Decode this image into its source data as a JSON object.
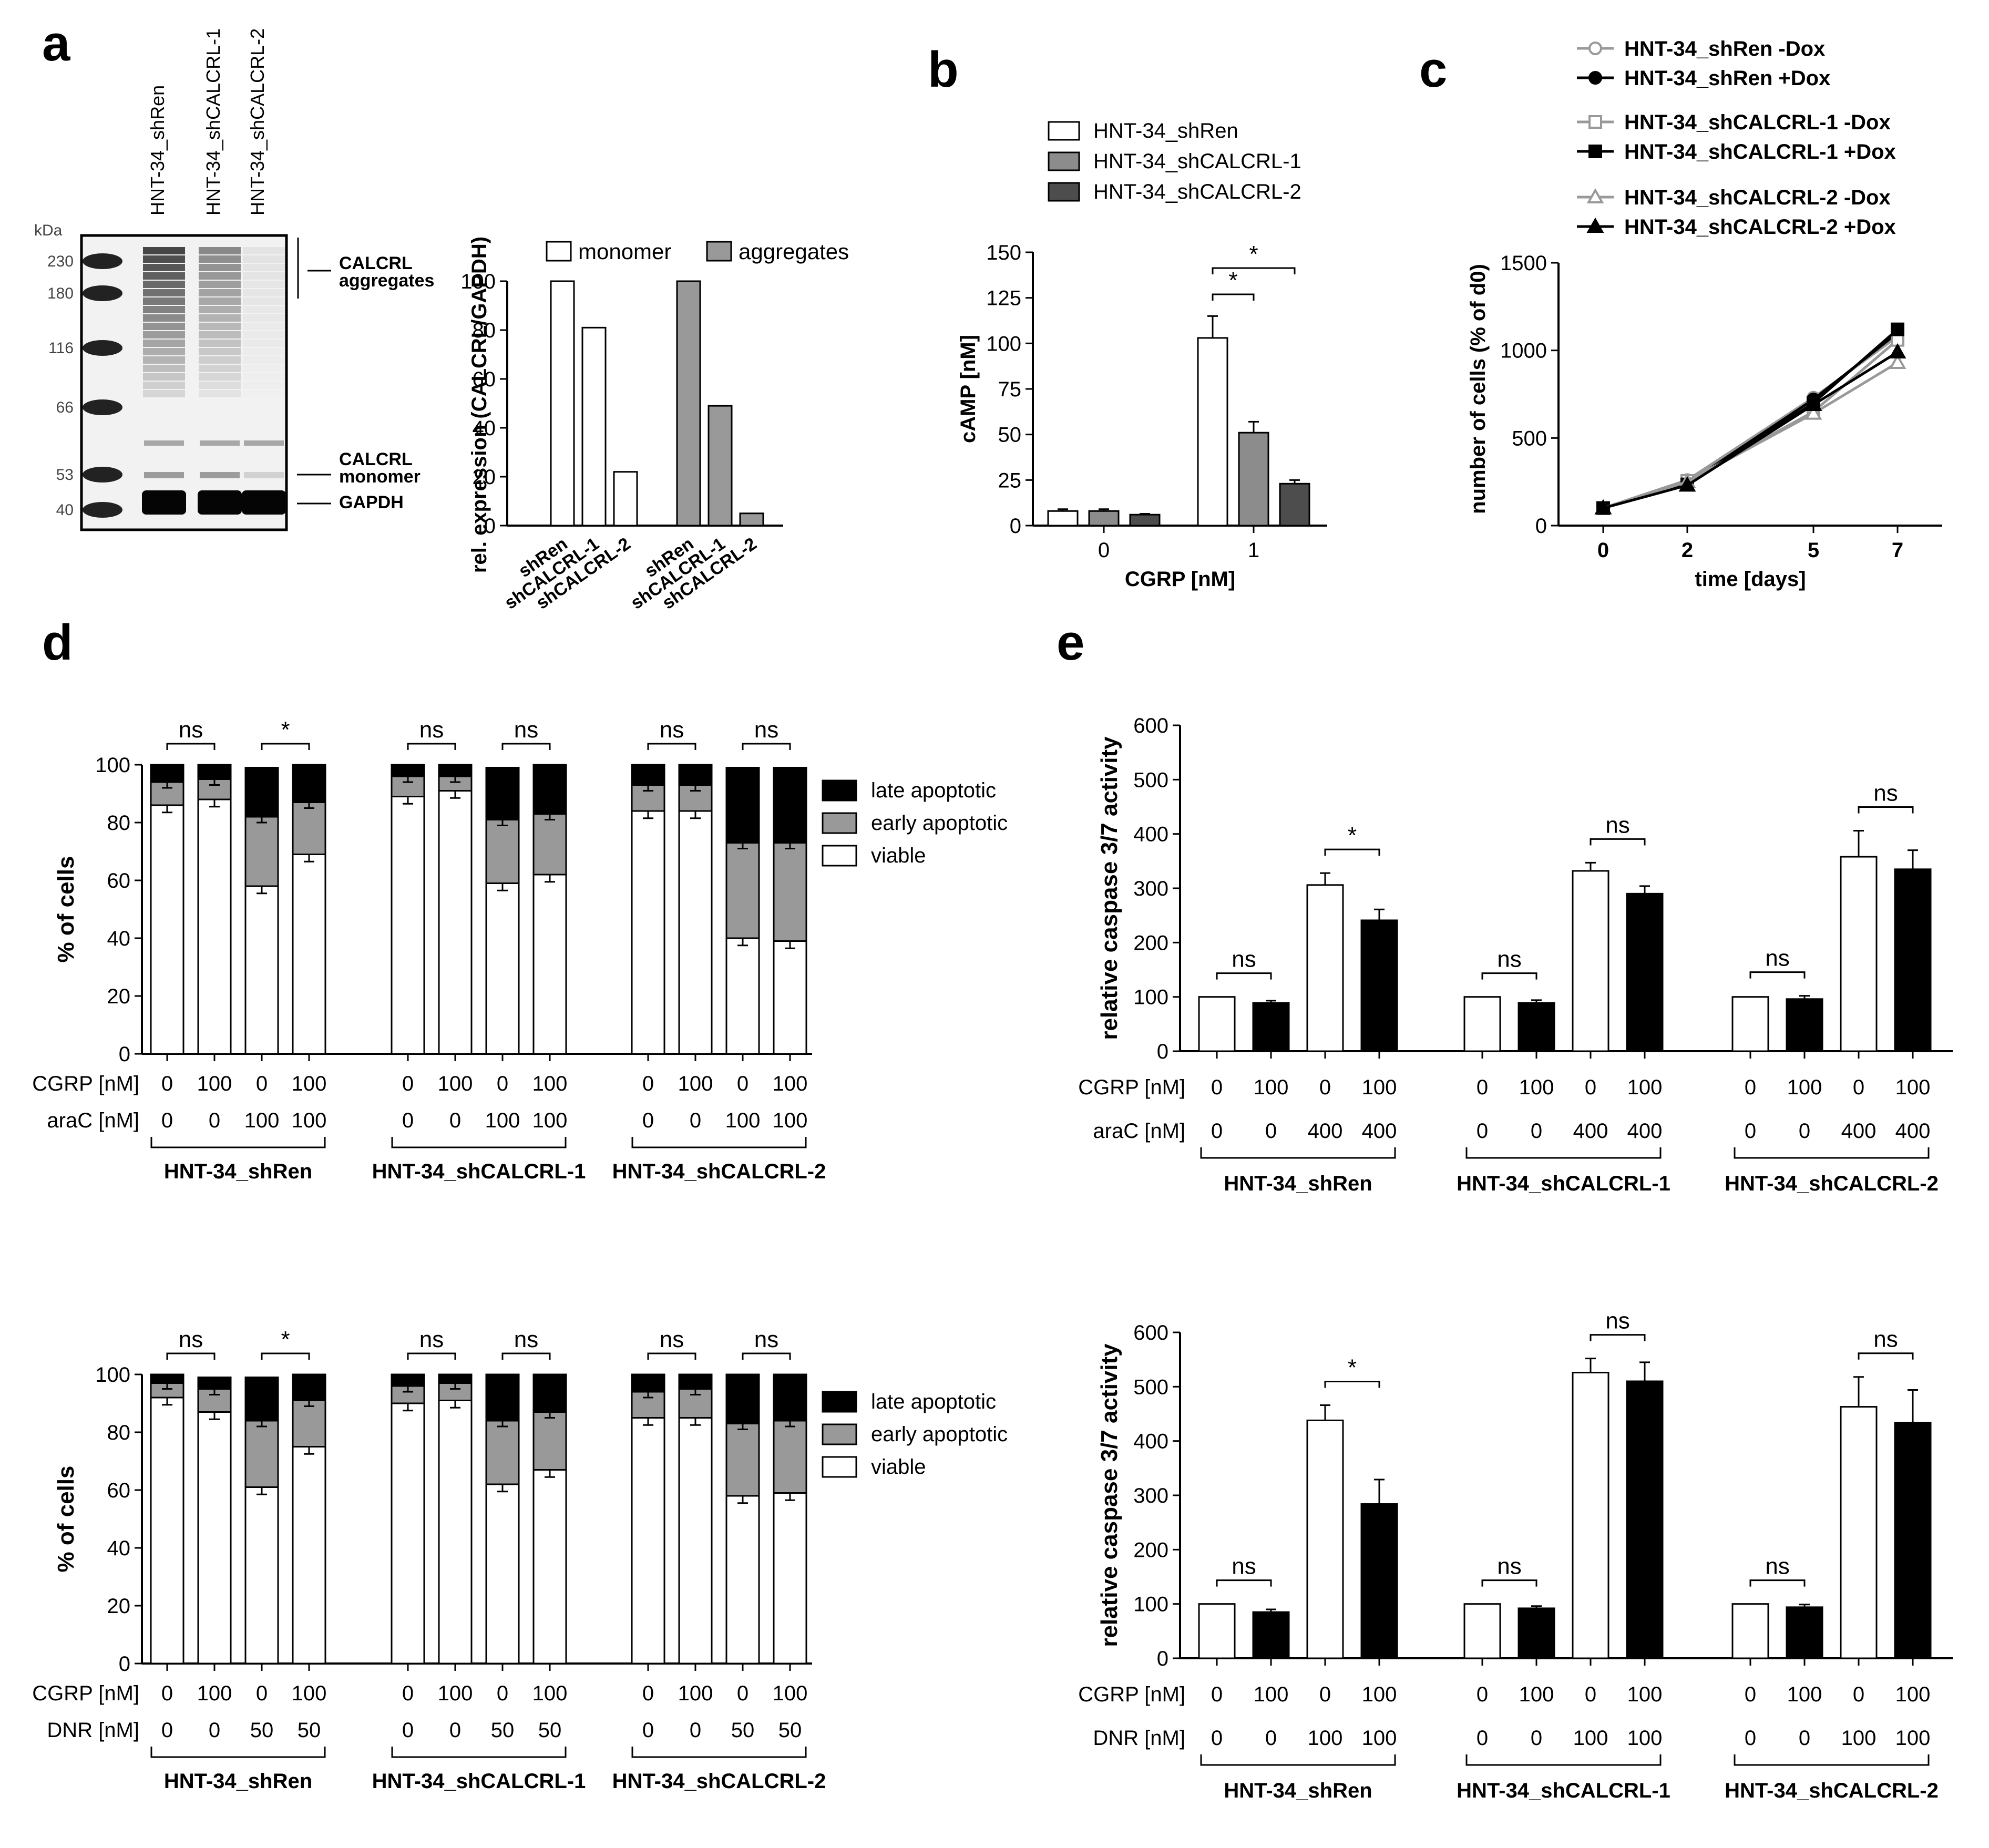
{
  "panel_letters": [
    "a",
    "b",
    "c",
    "d",
    "e"
  ],
  "blot": {
    "kda_label": "kDa",
    "markers": [
      "230",
      "180",
      "116",
      "66",
      "53",
      "40"
    ],
    "lanes": [
      "HNT-34_shRen",
      "HNT-34_shCALCRL-1",
      "HNT-34_shCALCRL-2"
    ],
    "annotations": [
      "CALCRL",
      "aggregates",
      "CALCRL",
      "monomer",
      "GAPDH"
    ]
  },
  "chart_data": [
    {
      "id": "a",
      "type": "bar",
      "ylabel": "rel. expression (CALCRL/GAPDH)",
      "ylim": [
        0,
        100
      ],
      "yticks": [
        0,
        20,
        40,
        60,
        80,
        100
      ],
      "legend": [
        "monomer",
        "aggregates"
      ],
      "series": [
        {
          "name": "monomer",
          "categories": [
            "shRen",
            "shCALCRL-1",
            "shCALCRL-2"
          ],
          "values": [
            100,
            81,
            22
          ],
          "color": "#ffffff"
        },
        {
          "name": "aggregates",
          "categories": [
            "shRen",
            "shCALCRL-1",
            "shCALCRL-2"
          ],
          "values": [
            100,
            49,
            5
          ],
          "color": "#999999"
        }
      ]
    },
    {
      "id": "b",
      "type": "bar",
      "xlabel": "CGRP [nM]",
      "ylabel": "cAMP [nM]",
      "ylim": [
        0,
        150
      ],
      "yticks": [
        0,
        25,
        50,
        75,
        100,
        125,
        150
      ],
      "categories": [
        "0",
        "1"
      ],
      "series": [
        {
          "name": "HNT-34_shRen",
          "values": [
            8,
            103
          ],
          "errors": [
            1,
            12
          ],
          "color": "#ffffff"
        },
        {
          "name": "HNT-34_shCALCRL-1",
          "values": [
            8,
            51
          ],
          "errors": [
            1,
            6
          ],
          "color": "#8c8c8c"
        },
        {
          "name": "HNT-34_shCALCRL-2",
          "values": [
            6,
            23
          ],
          "errors": [
            0.5,
            2
          ],
          "color": "#4d4d4d"
        }
      ],
      "significance": [
        "*",
        "*"
      ]
    },
    {
      "id": "c",
      "type": "line",
      "xlabel": "time [days]",
      "ylabel": "number of cells (% of d0)",
      "ylim": [
        0,
        1500
      ],
      "yticks": [
        0,
        500,
        1000,
        1500
      ],
      "x": [
        0,
        2,
        5,
        7
      ],
      "series": [
        {
          "name": "HNT-34_shRen -Dox",
          "values": [
            100,
            260,
            730,
            1080
          ],
          "color": "#999999",
          "marker": "circle",
          "filled": false
        },
        {
          "name": "HNT-34_shRen +Dox",
          "values": [
            100,
            240,
            720,
            1100
          ],
          "color": "#000000",
          "marker": "circle",
          "filled": true
        },
        {
          "name": "HNT-34_shCALCRL-1 -Dox",
          "values": [
            100,
            255,
            650,
            1060
          ],
          "color": "#999999",
          "marker": "square",
          "filled": false
        },
        {
          "name": "HNT-34_shCALCRL-1 +Dox",
          "values": [
            100,
            235,
            700,
            1120
          ],
          "color": "#000000",
          "marker": "square",
          "filled": true
        },
        {
          "name": "HNT-34_shCALCRL-2 -Dox",
          "values": [
            100,
            250,
            640,
            930
          ],
          "color": "#999999",
          "marker": "triangle",
          "filled": false
        },
        {
          "name": "HNT-34_shCALCRL-2 +Dox",
          "values": [
            100,
            230,
            690,
            990
          ],
          "color": "#000000",
          "marker": "triangle",
          "filled": true
        }
      ]
    },
    {
      "id": "d-top",
      "type": "bar",
      "stacked": true,
      "ylabel": "% of cells",
      "ylim": [
        0,
        100
      ],
      "yticks": [
        0,
        20,
        40,
        60,
        80,
        100
      ],
      "row_labels": [
        "CGRP [nM]",
        "araC [nM]"
      ],
      "cgrp": [
        "0",
        "100",
        "0",
        "100",
        "0",
        "100",
        "0",
        "100",
        "0",
        "100",
        "0",
        "100"
      ],
      "drug": [
        "0",
        "0",
        "100",
        "100",
        "0",
        "0",
        "100",
        "100",
        "0",
        "0",
        "100",
        "100"
      ],
      "groups": [
        "HNT-34_shRen",
        "HNT-34_shCALCRL-1",
        "HNT-34_shCALCRL-2"
      ],
      "legend": [
        "late apoptotic",
        "early apoptotic",
        "viable"
      ],
      "viable": [
        86,
        88,
        58,
        69,
        89,
        91,
        59,
        62,
        84,
        84,
        40,
        39
      ],
      "early": [
        8,
        7,
        24,
        18,
        7,
        5,
        22,
        21,
        9,
        9,
        33,
        34
      ],
      "late": [
        6,
        5,
        17,
        13,
        4,
        4,
        18,
        17,
        7,
        7,
        26,
        26
      ],
      "significance": [
        "ns",
        "*",
        "ns",
        "ns",
        "ns",
        "ns"
      ]
    },
    {
      "id": "d-bottom",
      "type": "bar",
      "stacked": true,
      "ylabel": "% of cells",
      "ylim": [
        0,
        100
      ],
      "yticks": [
        0,
        20,
        40,
        60,
        80,
        100
      ],
      "row_labels": [
        "CGRP [nM]",
        "DNR [nM]"
      ],
      "cgrp": [
        "0",
        "100",
        "0",
        "100",
        "0",
        "100",
        "0",
        "100",
        "0",
        "100",
        "0",
        "100"
      ],
      "drug": [
        "0",
        "0",
        "50",
        "50",
        "0",
        "0",
        "50",
        "50",
        "0",
        "0",
        "50",
        "50"
      ],
      "groups": [
        "HNT-34_shRen",
        "HNT-34_shCALCRL-1",
        "HNT-34_shCALCRL-2"
      ],
      "legend": [
        "late apoptotic",
        "early apoptotic",
        "viable"
      ],
      "viable": [
        92,
        87,
        61,
        75,
        90,
        91,
        62,
        67,
        85,
        85,
        58,
        59
      ],
      "early": [
        5,
        8,
        23,
        16,
        6,
        6,
        22,
        20,
        9,
        10,
        25,
        25
      ],
      "late": [
        3,
        4,
        15,
        9,
        4,
        3,
        16,
        13,
        6,
        5,
        17,
        16
      ],
      "significance": [
        "ns",
        "*",
        "ns",
        "ns",
        "ns",
        "ns"
      ]
    },
    {
      "id": "e-top",
      "type": "bar",
      "ylabel": "relative caspase 3/7 activity",
      "ylim": [
        0,
        600
      ],
      "yticks": [
        0,
        100,
        200,
        300,
        400,
        500,
        600
      ],
      "row_labels": [
        "CGRP [nM]",
        "araC [nM]"
      ],
      "cgrp": [
        "0",
        "100",
        "0",
        "100",
        "0",
        "100",
        "0",
        "100",
        "0",
        "100",
        "0",
        "100"
      ],
      "drug": [
        "0",
        "0",
        "400",
        "400",
        "0",
        "0",
        "400",
        "400",
        "0",
        "0",
        "400",
        "400"
      ],
      "groups": [
        "HNT-34_shRen",
        "HNT-34_shCALCRL-1",
        "HNT-34_shCALCRL-2"
      ],
      "values": [
        100,
        89,
        306,
        241,
        100,
        89,
        332,
        290,
        100,
        96,
        358,
        335
      ],
      "errors": [
        0,
        4,
        22,
        20,
        0,
        5,
        15,
        14,
        0,
        6,
        48,
        35
      ],
      "significance": [
        "ns",
        "*",
        "ns",
        "ns",
        "ns",
        "ns"
      ]
    },
    {
      "id": "e-bottom",
      "type": "bar",
      "ylabel": "relative caspase 3/7 activity",
      "ylim": [
        0,
        600
      ],
      "yticks": [
        0,
        100,
        200,
        300,
        400,
        500,
        600
      ],
      "row_labels": [
        "CGRP [nM]",
        "DNR [nM]"
      ],
      "cgrp": [
        "0",
        "100",
        "0",
        "100",
        "0",
        "100",
        "0",
        "100",
        "0",
        "100",
        "0",
        "100"
      ],
      "drug": [
        "0",
        "0",
        "100",
        "100",
        "0",
        "0",
        "100",
        "100",
        "0",
        "0",
        "100",
        "100"
      ],
      "groups": [
        "HNT-34_shRen",
        "HNT-34_shCALCRL-1",
        "HNT-34_shCALCRL-2"
      ],
      "values": [
        100,
        85,
        438,
        284,
        100,
        92,
        526,
        510,
        100,
        94,
        463,
        434
      ],
      "errors": [
        0,
        5,
        28,
        45,
        0,
        4,
        26,
        35,
        0,
        5,
        55,
        60
      ],
      "significance": [
        "ns",
        "*",
        "ns",
        "ns",
        "ns",
        "ns"
      ]
    }
  ]
}
